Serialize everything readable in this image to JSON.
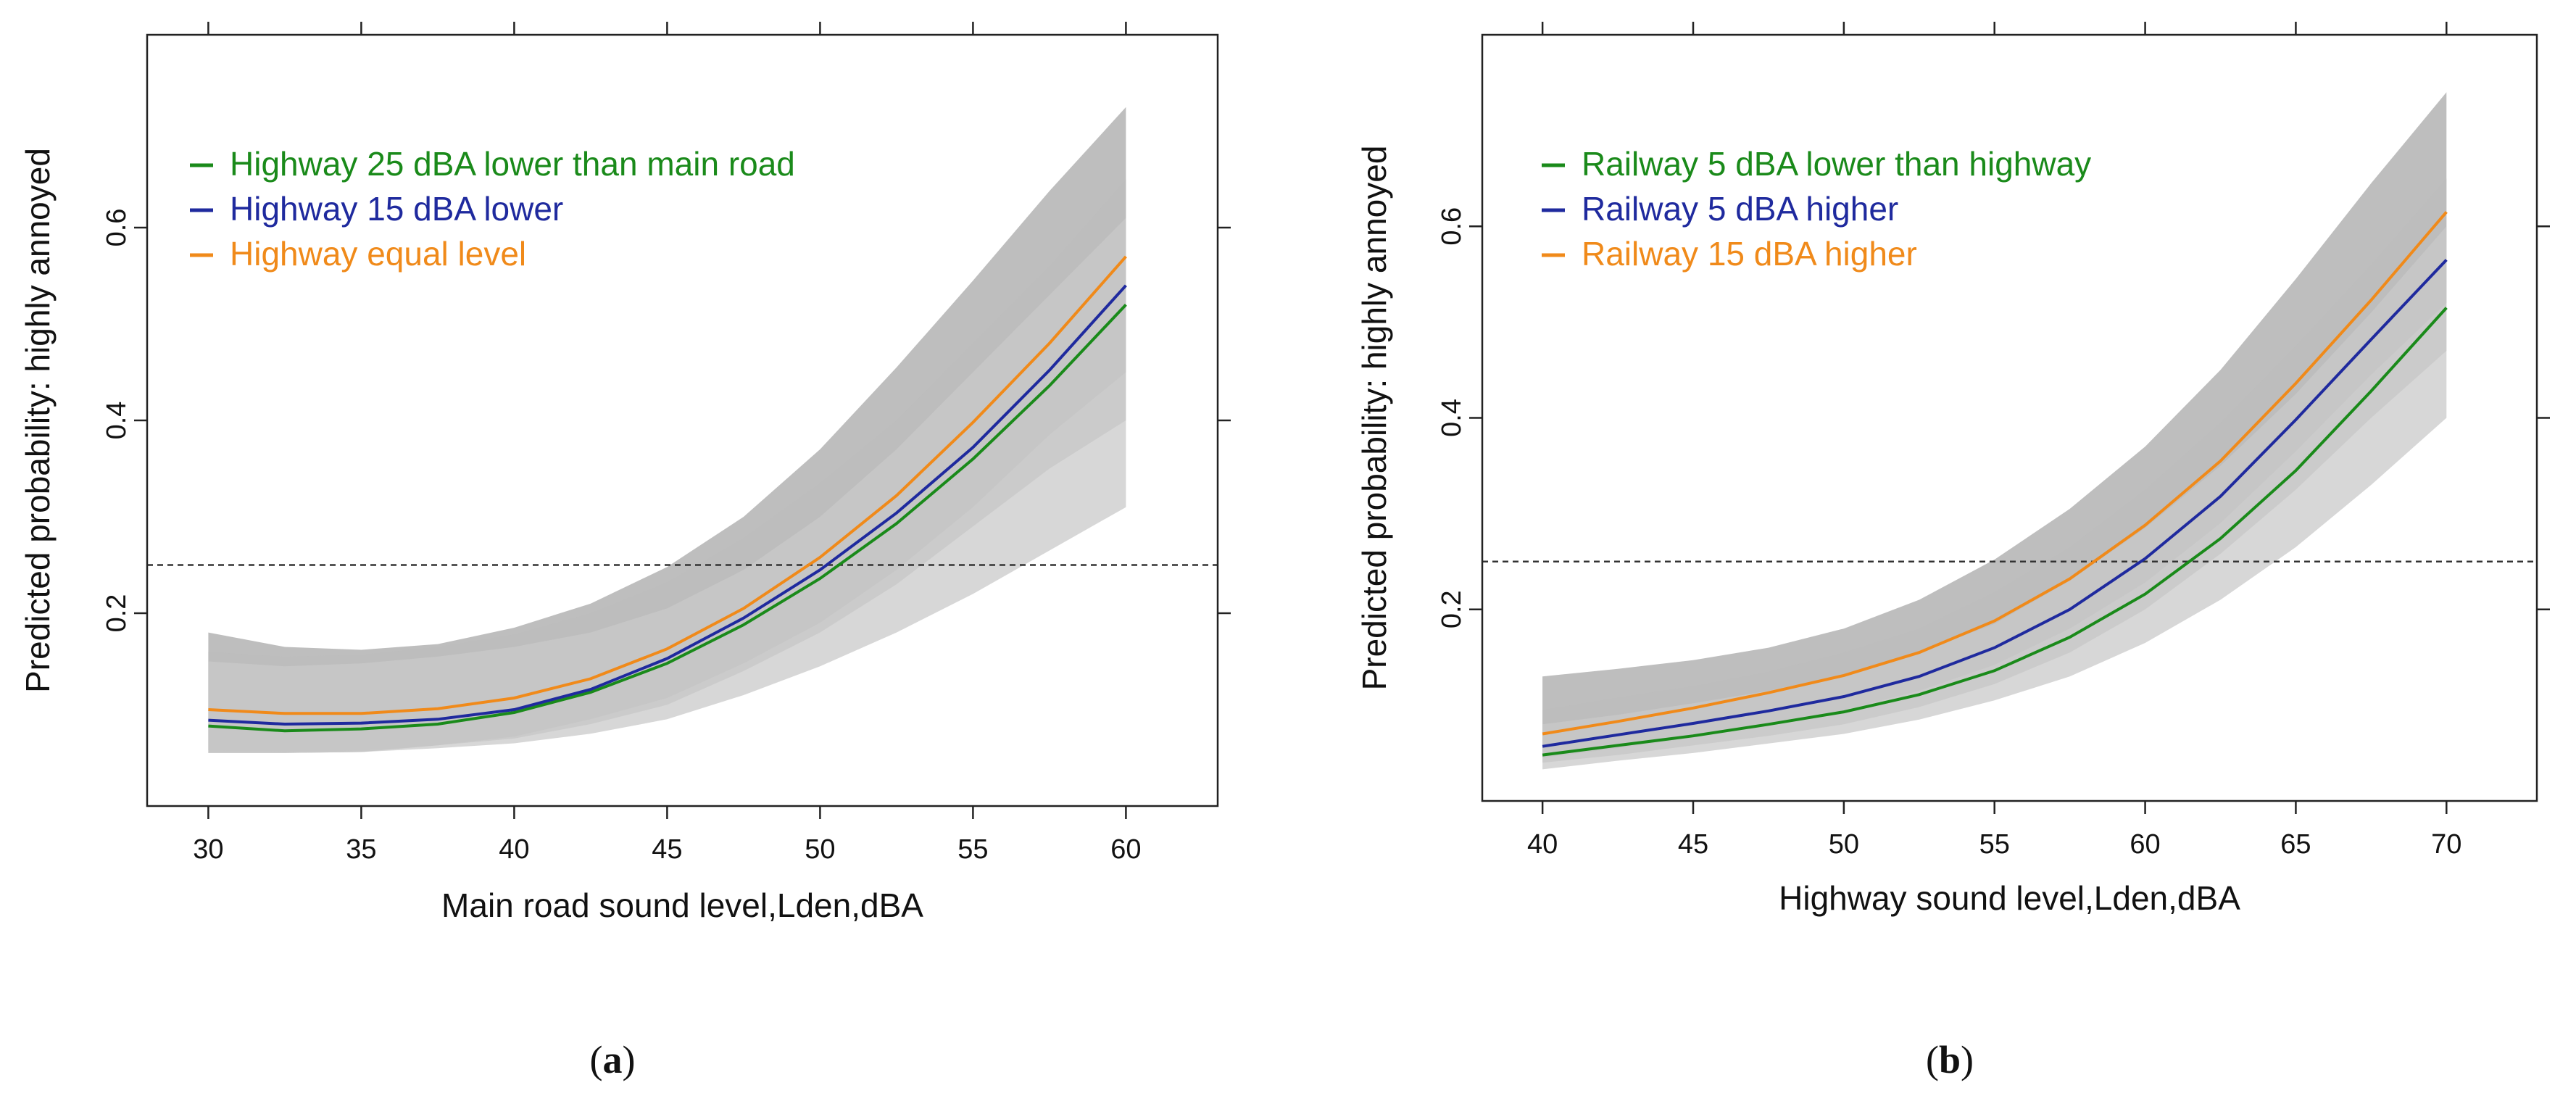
{
  "chart_data": [
    {
      "type": "line",
      "panel": "(a)",
      "panel_letter": "a",
      "xlabel": "Main road sound level,Lden,dBA",
      "ylabel": "Predicted probability: highly annoyed",
      "xlim": [
        28,
        63
      ],
      "ylim": [
        0,
        0.8
      ],
      "xticks": [
        30,
        35,
        40,
        45,
        50,
        55,
        60
      ],
      "yticks": [
        0.2,
        0.4,
        0.6
      ],
      "reference_line": 0.25,
      "legend_placement": "top-left",
      "x": [
        30,
        32.5,
        35,
        37.5,
        40,
        42.5,
        45,
        47.5,
        50,
        52.5,
        55,
        57.5,
        60
      ],
      "series": [
        {
          "name": "Highway 25 dBA  lower than main road",
          "color": "#1a8a1a",
          "values": [
            0.083,
            0.078,
            0.08,
            0.085,
            0.097,
            0.118,
            0.148,
            0.188,
            0.236,
            0.293,
            0.36,
            0.436,
            0.52
          ],
          "band_low": [
            0.055,
            0.055,
            0.056,
            0.06,
            0.065,
            0.075,
            0.09,
            0.115,
            0.145,
            0.18,
            0.22,
            0.265,
            0.31
          ],
          "band_high": [
            0.15,
            0.145,
            0.148,
            0.155,
            0.165,
            0.18,
            0.205,
            0.245,
            0.3,
            0.37,
            0.45,
            0.53,
            0.61
          ]
        },
        {
          "name": "Highway 15 dBA lower",
          "color": "#1f2a9e",
          "values": [
            0.089,
            0.085,
            0.086,
            0.09,
            0.1,
            0.121,
            0.153,
            0.195,
            0.245,
            0.304,
            0.372,
            0.452,
            0.54
          ],
          "band_low": [
            0.058,
            0.057,
            0.058,
            0.063,
            0.07,
            0.085,
            0.105,
            0.14,
            0.18,
            0.23,
            0.29,
            0.35,
            0.4
          ],
          "band_high": [
            0.16,
            0.155,
            0.157,
            0.165,
            0.178,
            0.2,
            0.232,
            0.278,
            0.335,
            0.4,
            0.48,
            0.56,
            0.65
          ]
        },
        {
          "name": "Highway equal level",
          "color": "#f08a1a",
          "values": [
            0.1,
            0.096,
            0.096,
            0.101,
            0.112,
            0.132,
            0.163,
            0.205,
            0.258,
            0.322,
            0.398,
            0.48,
            0.57
          ],
          "band_low": [
            0.055,
            0.055,
            0.056,
            0.063,
            0.072,
            0.09,
            0.112,
            0.148,
            0.19,
            0.245,
            0.31,
            0.385,
            0.45
          ],
          "band_high": [
            0.18,
            0.165,
            0.162,
            0.168,
            0.185,
            0.21,
            0.248,
            0.3,
            0.37,
            0.455,
            0.545,
            0.638,
            0.725
          ]
        }
      ]
    },
    {
      "type": "line",
      "panel": "(b)",
      "panel_letter": "b",
      "xlabel": "Highway sound level,Lden,dBA",
      "ylabel": "Predicted probability: highly annoyed",
      "xlim": [
        38,
        73
      ],
      "ylim": [
        0,
        0.8
      ],
      "xticks": [
        40,
        45,
        50,
        55,
        60,
        65,
        70
      ],
      "yticks": [
        0.2,
        0.4,
        0.6
      ],
      "reference_line": 0.25,
      "legend_placement": "top-left",
      "x": [
        40,
        42.5,
        45,
        47.5,
        50,
        52.5,
        55,
        57.5,
        60,
        62.5,
        65,
        67.5,
        70
      ],
      "series": [
        {
          "name": "Railway 5 dBA lower than highway",
          "color": "#1a8a1a",
          "values": [
            0.048,
            0.058,
            0.068,
            0.08,
            0.093,
            0.111,
            0.136,
            0.171,
            0.216,
            0.274,
            0.345,
            0.428,
            0.515
          ],
          "band_low": [
            0.033,
            0.042,
            0.05,
            0.06,
            0.07,
            0.085,
            0.105,
            0.13,
            0.165,
            0.21,
            0.265,
            0.33,
            0.4
          ],
          "band_high": [
            0.08,
            0.09,
            0.102,
            0.115,
            0.132,
            0.155,
            0.185,
            0.23,
            0.285,
            0.35,
            0.425,
            0.51,
            0.6
          ]
        },
        {
          "name": "Railway 5 dBA higher",
          "color": "#1f2a9e",
          "values": [
            0.057,
            0.069,
            0.081,
            0.094,
            0.109,
            0.13,
            0.16,
            0.2,
            0.253,
            0.318,
            0.398,
            0.482,
            0.565
          ],
          "band_low": [
            0.04,
            0.048,
            0.058,
            0.068,
            0.08,
            0.098,
            0.122,
            0.155,
            0.2,
            0.258,
            0.325,
            0.4,
            0.47
          ],
          "band_high": [
            0.095,
            0.108,
            0.12,
            0.135,
            0.155,
            0.18,
            0.218,
            0.265,
            0.325,
            0.395,
            0.475,
            0.56,
            0.65
          ]
        },
        {
          "name": "Railway 15 dBA higher",
          "color": "#f08a1a",
          "values": [
            0.07,
            0.083,
            0.097,
            0.113,
            0.131,
            0.155,
            0.188,
            0.232,
            0.288,
            0.355,
            0.436,
            0.523,
            0.615
          ],
          "band_low": [
            0.045,
            0.055,
            0.066,
            0.08,
            0.095,
            0.115,
            0.142,
            0.18,
            0.228,
            0.29,
            0.365,
            0.445,
            0.52
          ],
          "band_high": [
            0.13,
            0.138,
            0.147,
            0.16,
            0.18,
            0.21,
            0.252,
            0.305,
            0.37,
            0.45,
            0.545,
            0.645,
            0.74
          ]
        }
      ]
    }
  ]
}
